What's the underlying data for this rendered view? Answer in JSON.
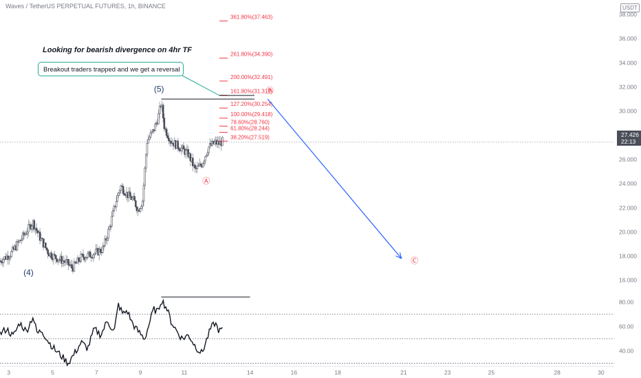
{
  "header": {
    "symbol": "Waves / TetherUS PERPETUAL FUTURES, 1h, BINANCE",
    "currency": "USDT"
  },
  "annotations": {
    "title": "Looking for bearish divergence on 4hr TF",
    "callout": "Breakout traders trapped and we get a reversal",
    "wave_labels": [
      {
        "label": "(5)",
        "x": 9.85,
        "y": 31.6
      },
      {
        "label": "(4)",
        "x": 3.9,
        "y": 16.4
      },
      {
        "label": "Ⓐ",
        "x": 12.0,
        "y": 24.0
      },
      {
        "label": "Ⓑ",
        "x": 14.9,
        "y": 31.5
      },
      {
        "label": "Ⓒ",
        "x": 21.5,
        "y": 17.4
      }
    ],
    "projection": {
      "from": [
        14.8,
        31.0
      ],
      "to": [
        20.9,
        17.8
      ]
    }
  },
  "price_tag": {
    "price": "27.426",
    "countdown": "22:13"
  },
  "chart_data": {
    "type": "candlestick",
    "x_axis": {
      "range": [
        2.6,
        30.6
      ],
      "ticks": [
        3,
        5,
        7,
        9,
        11,
        14,
        16,
        18,
        21,
        23,
        25,
        28,
        30
      ]
    },
    "price_axis": {
      "range": [
        15.3,
        39.2
      ],
      "ticks": [
        "16.000",
        "18.000",
        "20.000",
        "22.000",
        "24.000",
        "26.000",
        "28.000",
        "30.000",
        "32.000",
        "34.000",
        "36.000",
        "38.000"
      ]
    },
    "current_price": 27.426,
    "price_path": [
      [
        2.6,
        17.6
      ],
      [
        3.1,
        18.2
      ],
      [
        3.6,
        19.5
      ],
      [
        4.1,
        20.8
      ],
      [
        4.4,
        19.6
      ],
      [
        4.8,
        18.3
      ],
      [
        5.1,
        17.9
      ],
      [
        5.6,
        17.5
      ],
      [
        5.9,
        17.0
      ],
      [
        6.3,
        17.9
      ],
      [
        6.7,
        18.1
      ],
      [
        7.0,
        18.3
      ],
      [
        7.3,
        18.6
      ],
      [
        7.6,
        20.4
      ],
      [
        7.9,
        22.6
      ],
      [
        8.1,
        23.8
      ],
      [
        8.4,
        23.1
      ],
      [
        8.7,
        22.6
      ],
      [
        8.9,
        21.8
      ],
      [
        9.1,
        22.6
      ],
      [
        9.3,
        27.5
      ],
      [
        9.6,
        28.4
      ],
      [
        9.8,
        29.4
      ],
      [
        9.95,
        30.7
      ],
      [
        10.1,
        28.6
      ],
      [
        10.4,
        27.5
      ],
      [
        10.8,
        27.0
      ],
      [
        11.2,
        26.4
      ],
      [
        11.5,
        25.1
      ],
      [
        11.8,
        25.6
      ],
      [
        12.1,
        27.0
      ],
      [
        12.4,
        27.4
      ],
      [
        12.6,
        27.3
      ],
      [
        12.75,
        27.5
      ]
    ],
    "fib_levels": [
      {
        "label": "361.80%(37.463)",
        "price": 37.463
      },
      {
        "label": "261.80%(34.390)",
        "price": 34.39
      },
      {
        "label": "200.00%(32.491)",
        "price": 32.491
      },
      {
        "label": "161.80%(31.317)",
        "price": 31.317
      },
      {
        "label": "127.20%(30.254)",
        "price": 30.254
      },
      {
        "label": "100.00%(29.418)",
        "price": 29.418
      },
      {
        "label": "78.60%(28.760)",
        "price": 28.76
      },
      {
        "label": "61.80%(28.244)",
        "price": 28.244
      },
      {
        "label": "38.20%(27.519)",
        "price": 27.519
      }
    ],
    "resistance_lines": [
      {
        "from": [
          9.95,
          31.0
        ],
        "to": [
          14.2,
          31.0
        ]
      },
      {
        "from": [
          12.6,
          31.3
        ],
        "to": [
          14.2,
          31.3
        ]
      }
    ],
    "oscillator": {
      "range": [
        32,
        88
      ],
      "ticks": [
        "40.00",
        "60.00",
        "80.00"
      ],
      "bands": [
        70,
        50,
        30
      ],
      "divergence_line": {
        "from": [
          9.95,
          84
        ],
        "to": [
          14.0,
          84
        ]
      },
      "path": [
        [
          2.6,
          54
        ],
        [
          2.9,
          58
        ],
        [
          3.2,
          52
        ],
        [
          3.5,
          63
        ],
        [
          3.8,
          56
        ],
        [
          4.1,
          68
        ],
        [
          4.3,
          54
        ],
        [
          4.5,
          57
        ],
        [
          4.8,
          48
        ],
        [
          5.1,
          41
        ],
        [
          5.4,
          36
        ],
        [
          5.7,
          30
        ],
        [
          6.0,
          38
        ],
        [
          6.3,
          47
        ],
        [
          6.6,
          42
        ],
        [
          6.9,
          58
        ],
        [
          7.2,
          53
        ],
        [
          7.5,
          65
        ],
        [
          7.8,
          55
        ],
        [
          8.0,
          78
        ],
        [
          8.2,
          70
        ],
        [
          8.4,
          73
        ],
        [
          8.6,
          64
        ],
        [
          8.8,
          58
        ],
        [
          9.0,
          54
        ],
        [
          9.2,
          50
        ],
        [
          9.4,
          62
        ],
        [
          9.6,
          74
        ],
        [
          9.8,
          72
        ],
        [
          9.95,
          82
        ],
        [
          10.2,
          75
        ],
        [
          10.4,
          64
        ],
        [
          10.6,
          58
        ],
        [
          10.9,
          50
        ],
        [
          11.2,
          53
        ],
        [
          11.5,
          44
        ],
        [
          11.8,
          38
        ],
        [
          12.0,
          48
        ],
        [
          12.2,
          58
        ],
        [
          12.4,
          63
        ],
        [
          12.6,
          56
        ],
        [
          12.75,
          58
        ]
      ]
    }
  }
}
